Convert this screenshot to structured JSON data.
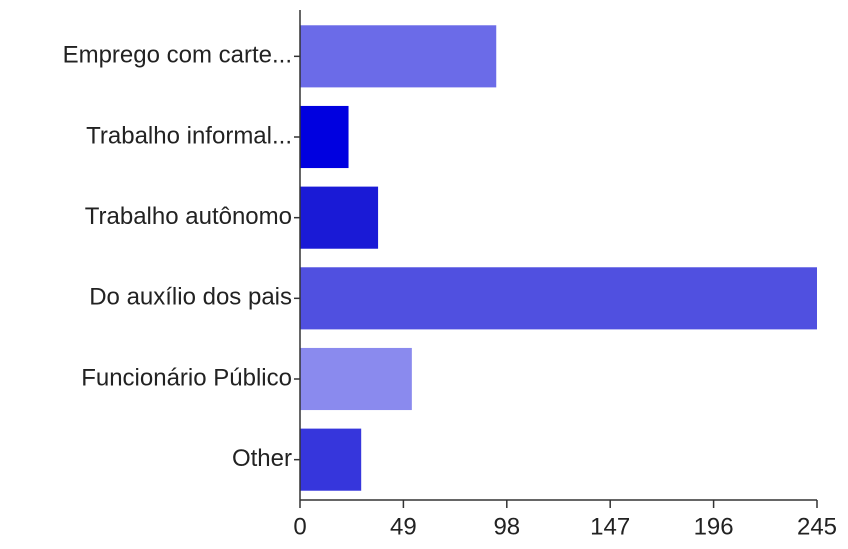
{
  "chart_data": {
    "type": "hbar",
    "categories": [
      "Emprego com carte...",
      "Trabalho informal...",
      "Trabalho autônomo",
      "Do auxílio dos pais",
      "Funcionário Público",
      "Other"
    ],
    "values": [
      93,
      23,
      37,
      245,
      53,
      29
    ],
    "colors": [
      "#6b6be8",
      "#0000e0",
      "#1a1ad6",
      "#5050e0",
      "#8a8aee",
      "#3636dc"
    ],
    "xlim": [
      0,
      245
    ],
    "xticks": [
      0,
      49,
      98,
      147,
      196,
      245
    ],
    "grid": false
  }
}
